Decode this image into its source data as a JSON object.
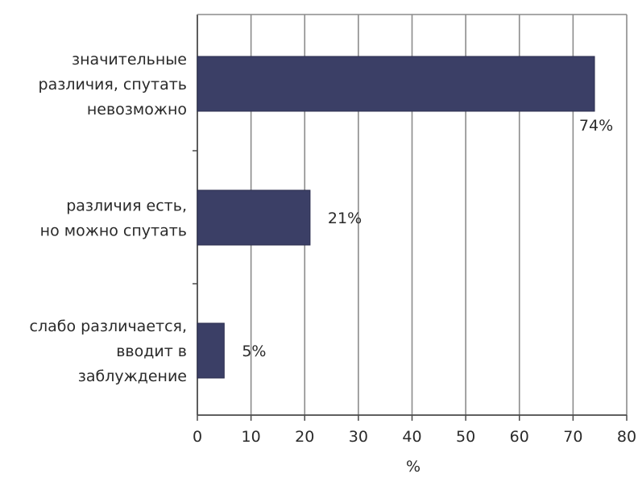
{
  "chart_data": {
    "type": "bar",
    "orientation": "horizontal",
    "categories": [
      [
        "значительные",
        "различия, спутать",
        "невозможно"
      ],
      [
        "различия есть,",
        "но можно спутать"
      ],
      [
        "слабо различается,",
        "вводит в",
        "заблуждение"
      ]
    ],
    "values": [
      74,
      21,
      5
    ],
    "value_labels": [
      "74%",
      "21%",
      "5%"
    ],
    "xlabel": "%",
    "ylabel": "",
    "xlim": [
      0,
      80
    ],
    "ticks": [
      "0",
      "10",
      "20",
      "30",
      "40",
      "50",
      "60",
      "70",
      "80"
    ],
    "grid": "vertical",
    "colors": {
      "bar": "#3b3f66",
      "grid": "#8c8c8c",
      "frame": "#4a4a4a"
    }
  }
}
